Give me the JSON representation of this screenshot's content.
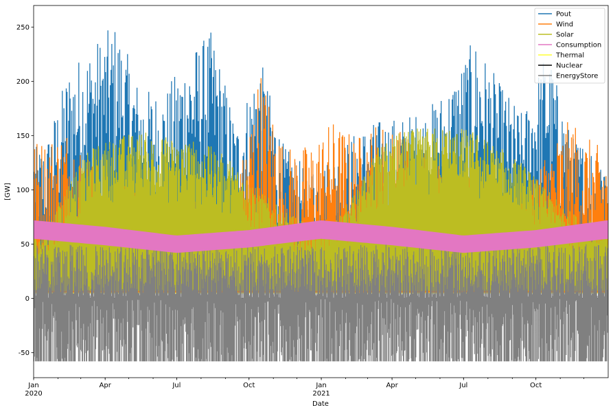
{
  "chart_data": {
    "type": "line",
    "xlabel": "Date",
    "ylabel": "[GW]",
    "x_range": [
      "2020-01-01",
      "2021-12-31"
    ],
    "ylim": [
      -73,
      270
    ],
    "y_ticks": [
      -50,
      0,
      50,
      100,
      150,
      200,
      250
    ],
    "x_ticks": [
      {
        "date": "2020-01-01",
        "label": "Jan",
        "sublabel": "2020",
        "major": true
      },
      {
        "date": "2020-04-01",
        "label": "Apr",
        "major": false
      },
      {
        "date": "2020-07-01",
        "label": "Jul",
        "major": false
      },
      {
        "date": "2020-10-01",
        "label": "Oct",
        "major": false
      },
      {
        "date": "2021-01-01",
        "label": "Jan",
        "sublabel": "2021",
        "major": true
      },
      {
        "date": "2021-04-01",
        "label": "Apr",
        "major": false
      },
      {
        "date": "2021-07-01",
        "label": "Jul",
        "major": false
      },
      {
        "date": "2021-10-01",
        "label": "Oct",
        "major": false
      }
    ],
    "legend_position": "top-right",
    "grid": false,
    "series": [
      {
        "name": "Pout",
        "color": "#1f77b4",
        "monthly_peak": [
          [
            "2020-01-15",
            140
          ],
          [
            "2020-02-15",
            214
          ],
          [
            "2020-03-15",
            235
          ],
          [
            "2020-04-15",
            254
          ],
          [
            "2020-05-15",
            195
          ],
          [
            "2020-06-15",
            190
          ],
          [
            "2020-07-15",
            227
          ],
          [
            "2020-08-15",
            247
          ],
          [
            "2020-09-15",
            160
          ],
          [
            "2020-10-15",
            223
          ],
          [
            "2020-11-15",
            140
          ],
          [
            "2020-12-15",
            120
          ],
          [
            "2021-01-15",
            130
          ],
          [
            "2021-02-15",
            155
          ],
          [
            "2021-03-15",
            165
          ],
          [
            "2021-04-15",
            168
          ],
          [
            "2021-05-15",
            175
          ],
          [
            "2021-06-15",
            200
          ],
          [
            "2021-07-15",
            241
          ],
          [
            "2021-08-15",
            200
          ],
          [
            "2021-09-15",
            170
          ],
          [
            "2021-10-15",
            233
          ],
          [
            "2021-11-15",
            150
          ],
          [
            "2021-12-15",
            140
          ]
        ]
      },
      {
        "name": "Wind",
        "color": "#ff7f0e",
        "monthly_peak": [
          [
            "2020-01-15",
            148
          ],
          [
            "2020-02-15",
            160
          ],
          [
            "2020-03-15",
            130
          ],
          [
            "2020-04-15",
            110
          ],
          [
            "2020-05-15",
            100
          ],
          [
            "2020-06-15",
            95
          ],
          [
            "2020-07-15",
            90
          ],
          [
            "2020-08-15",
            95
          ],
          [
            "2020-09-15",
            100
          ],
          [
            "2020-10-15",
            215
          ],
          [
            "2020-11-15",
            140
          ],
          [
            "2020-12-15",
            142
          ],
          [
            "2021-01-15",
            165
          ],
          [
            "2021-02-15",
            150
          ],
          [
            "2021-03-15",
            165
          ],
          [
            "2021-04-15",
            155
          ],
          [
            "2021-05-15",
            140
          ],
          [
            "2021-06-15",
            120
          ],
          [
            "2021-07-15",
            110
          ],
          [
            "2021-08-15",
            100
          ],
          [
            "2021-09-15",
            105
          ],
          [
            "2021-10-15",
            140
          ],
          [
            "2021-11-15",
            167
          ],
          [
            "2021-12-15",
            142
          ]
        ]
      },
      {
        "name": "Solar",
        "color": "#bcbd22",
        "min": 7,
        "monthly_peak": [
          [
            "2020-01-15",
            60
          ],
          [
            "2020-02-15",
            110
          ],
          [
            "2020-03-15",
            140
          ],
          [
            "2020-04-15",
            150
          ],
          [
            "2020-05-15",
            155
          ],
          [
            "2020-06-15",
            150
          ],
          [
            "2020-07-15",
            148
          ],
          [
            "2020-08-15",
            140
          ],
          [
            "2020-09-15",
            125
          ],
          [
            "2020-10-15",
            100
          ],
          [
            "2020-11-15",
            80
          ],
          [
            "2020-12-15",
            70
          ],
          [
            "2021-01-15",
            70
          ],
          [
            "2021-02-15",
            100
          ],
          [
            "2021-03-15",
            140
          ],
          [
            "2021-04-15",
            155
          ],
          [
            "2021-05-15",
            158
          ],
          [
            "2021-06-15",
            160
          ],
          [
            "2021-07-15",
            155
          ],
          [
            "2021-08-15",
            140
          ],
          [
            "2021-09-15",
            125
          ],
          [
            "2021-10-15",
            100
          ],
          [
            "2021-11-15",
            80
          ],
          [
            "2021-12-15",
            70
          ]
        ]
      },
      {
        "name": "Consumption",
        "color": "#e377c2",
        "band_upper": [
          [
            "2020-01-01",
            72
          ],
          [
            "2020-04-01",
            66
          ],
          [
            "2020-07-01",
            58
          ],
          [
            "2020-10-01",
            63
          ],
          [
            "2021-01-01",
            72
          ],
          [
            "2021-04-01",
            66
          ],
          [
            "2021-07-01",
            58
          ],
          [
            "2021-10-01",
            63
          ],
          [
            "2021-12-31",
            72
          ]
        ],
        "band_lower": [
          [
            "2020-01-01",
            55
          ],
          [
            "2020-04-01",
            49
          ],
          [
            "2020-07-01",
            42
          ],
          [
            "2020-10-01",
            47
          ],
          [
            "2021-01-01",
            55
          ],
          [
            "2021-04-01",
            49
          ],
          [
            "2021-07-01",
            42
          ],
          [
            "2021-10-01",
            47
          ],
          [
            "2021-12-31",
            55
          ]
        ]
      },
      {
        "name": "Thermal",
        "color": "#ffff33",
        "constant": 5
      },
      {
        "name": "Nuclear",
        "color": "#000000",
        "constant": 0
      },
      {
        "name": "EnergyStore",
        "color": "#808080",
        "min": -58,
        "typical_max": 50
      }
    ]
  }
}
